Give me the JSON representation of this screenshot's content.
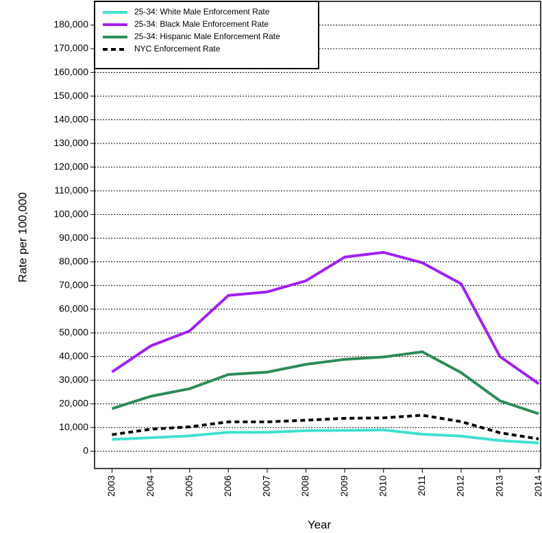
{
  "chart_data": {
    "type": "line",
    "xlabel": "Year",
    "ylabel": "Rate per 100,000",
    "x": [
      2003,
      2004,
      2005,
      2006,
      2007,
      2008,
      2009,
      2010,
      2011,
      2012,
      2013,
      2014
    ],
    "series": [
      {
        "name": "25-34: White Male Enforcement Rate",
        "color": "#40e0d0",
        "linestyle": "solid",
        "values": [
          5000,
          5700,
          6500,
          8000,
          8000,
          8700,
          8800,
          9000,
          7200,
          6400,
          4500,
          3500
        ]
      },
      {
        "name": "25-34: Black Male Enforcement Rate",
        "color": "#a020f0",
        "linestyle": "solid",
        "values": [
          33500,
          44500,
          50800,
          65800,
          67300,
          72000,
          82000,
          84000,
          79600,
          70700,
          40000,
          28500
        ]
      },
      {
        "name": "25-34: Hispanic Male Enforcement Rate",
        "color": "#2e8b57",
        "linestyle": "solid",
        "values": [
          18000,
          23200,
          26400,
          32400,
          33400,
          36700,
          38800,
          39800,
          42000,
          33200,
          21300,
          15800
        ]
      },
      {
        "name": "NYC Enforcement Rate",
        "color": "#000000",
        "linestyle": "dashed",
        "values": [
          7000,
          9300,
          10300,
          12400,
          12400,
          13100,
          13900,
          14100,
          15200,
          12500,
          7800,
          5200
        ]
      }
    ],
    "xlim": [
      2002.55,
      2014.05
    ],
    "xticks": [
      2003,
      2004,
      2005,
      2006,
      2007,
      2008,
      2009,
      2010,
      2011,
      2012,
      2013,
      2014
    ],
    "ylim": [
      -7300,
      190000
    ],
    "yticks": [
      0,
      {
        "value": 10000,
        "label": "10,000"
      },
      {
        "value": 20000,
        "label": "20,000"
      },
      {
        "value": 30000,
        "label": "30,000"
      },
      {
        "value": 40000,
        "label": "40,000"
      },
      {
        "value": 50000,
        "label": "50,000"
      },
      {
        "value": 60000,
        "label": "60,000"
      },
      {
        "value": 70000,
        "label": "70,000"
      },
      {
        "value": 80000,
        "label": "80,000"
      },
      {
        "value": 90000,
        "label": "90,000"
      },
      {
        "value": 100000,
        "label": "100,000"
      },
      {
        "value": 110000,
        "label": "110,000"
      },
      {
        "value": 120000,
        "label": "120,000"
      },
      {
        "value": 130000,
        "label": "130,000"
      },
      {
        "value": 140000,
        "label": "140,000"
      },
      {
        "value": 150000,
        "label": "150,000"
      },
      {
        "value": 160000,
        "label": "160,000"
      },
      {
        "value": 170000,
        "label": "170,000"
      },
      {
        "value": 180000,
        "label": "180,000"
      }
    ],
    "grid": true,
    "legend": "upper left"
  }
}
